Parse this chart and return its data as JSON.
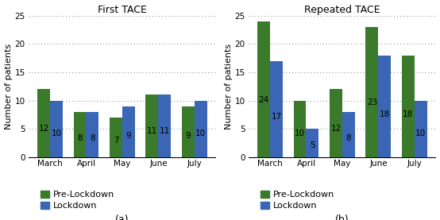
{
  "subplot_a": {
    "title": "First TACE",
    "categories": [
      "March",
      "April",
      "May",
      "June",
      "July"
    ],
    "pre_lockdown": [
      12,
      8,
      7,
      11,
      9
    ],
    "lockdown": [
      10,
      8,
      9,
      11,
      10
    ],
    "ylabel": "Number of patients",
    "ylim": [
      0,
      25
    ],
    "yticks": [
      0,
      5,
      10,
      15,
      20,
      25
    ],
    "caption": "(a)"
  },
  "subplot_b": {
    "title": "Repeated TACE",
    "categories": [
      "March",
      "April",
      "May",
      "June",
      "July"
    ],
    "pre_lockdown": [
      24,
      10,
      12,
      23,
      18
    ],
    "lockdown": [
      17,
      5,
      8,
      18,
      10
    ],
    "ylabel": "Number of patients",
    "ylim": [
      0,
      25
    ],
    "yticks": [
      0,
      5,
      10,
      15,
      20,
      25
    ],
    "caption": "(b)"
  },
  "green_color": "#3a7a2a",
  "blue_color": "#3a66b5",
  "legend_labels": [
    "Pre-Lockdown",
    "Lockdown"
  ],
  "bar_width": 0.35,
  "label_fontsize": 7.5,
  "title_fontsize": 9,
  "axis_fontsize": 8,
  "tick_fontsize": 7.5,
  "legend_fontsize": 8,
  "caption_fontsize": 9
}
